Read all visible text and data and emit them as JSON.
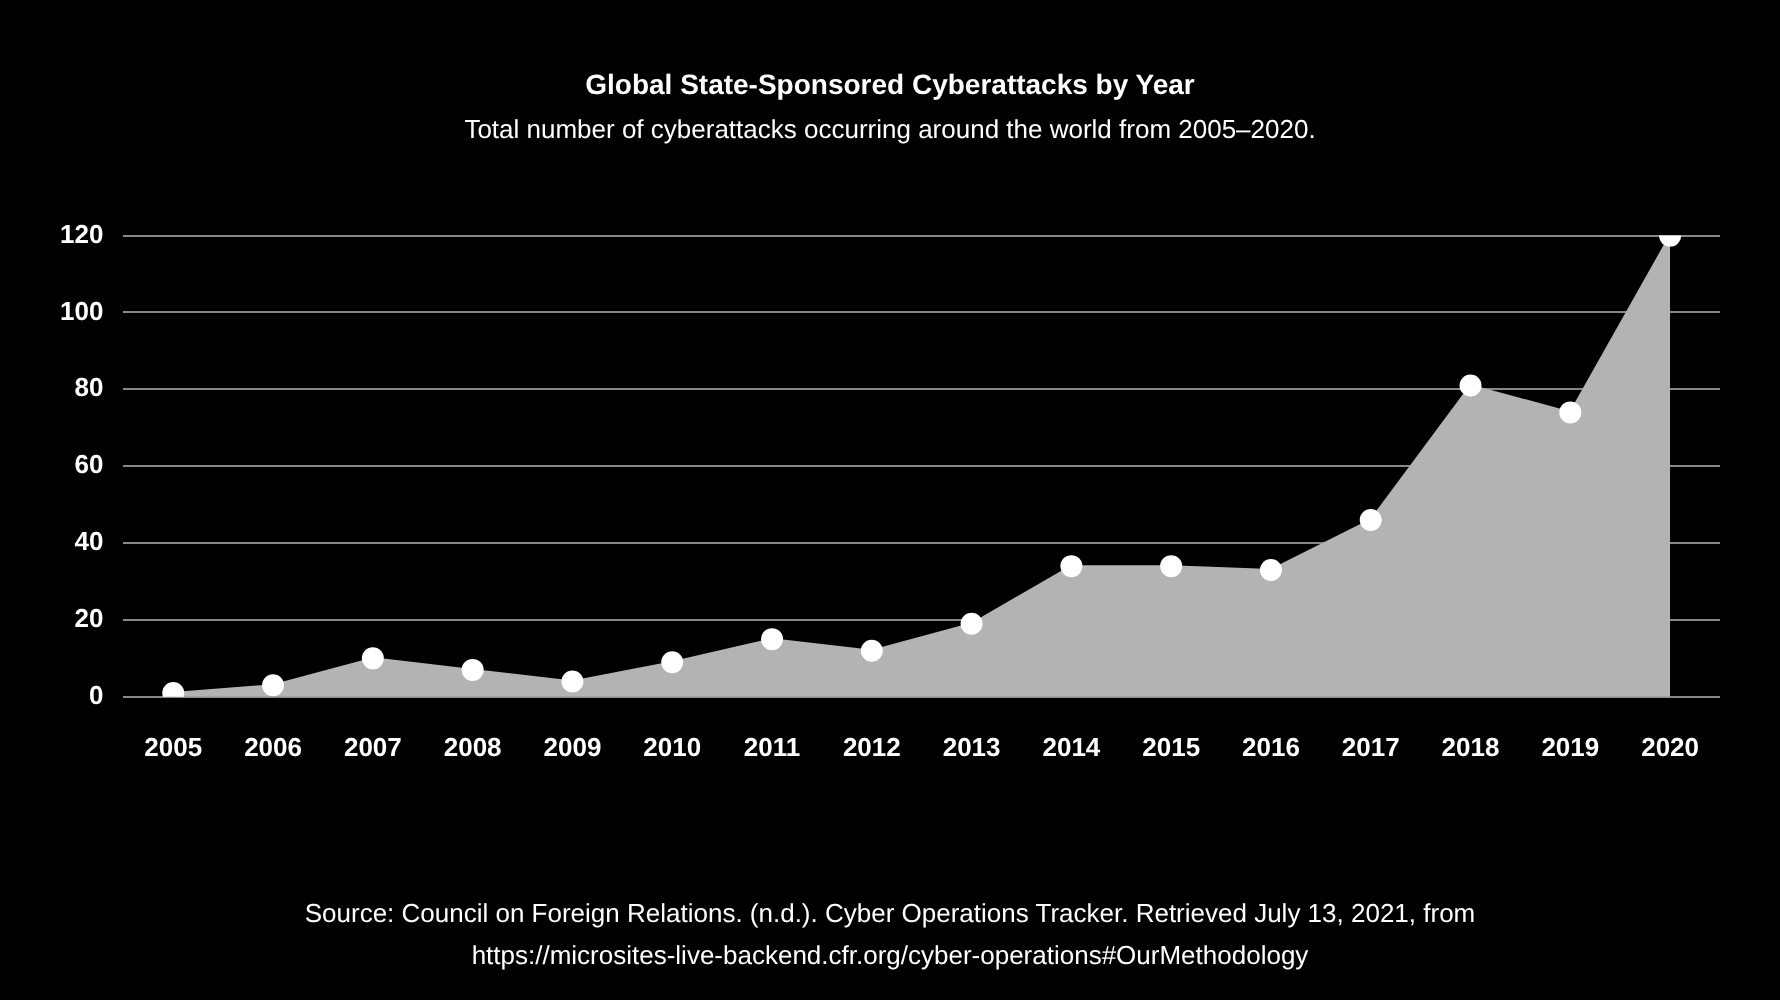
{
  "chart_data": {
    "type": "area",
    "title": "Global State-Sponsored Cyberattacks by Year",
    "subtitle": "Total number of cyberattacks occurring around the world from 2005–2020.",
    "categories": [
      "2005",
      "2006",
      "2007",
      "2008",
      "2009",
      "2010",
      "2011",
      "2012",
      "2013",
      "2014",
      "2015",
      "2016",
      "2017",
      "2018",
      "2019",
      "2020"
    ],
    "series": [
      {
        "color": "#b3b3b3",
        "values": [
          1,
          3,
          10,
          7,
          4,
          9,
          15,
          12,
          19,
          34,
          34,
          33,
          46,
          81,
          74,
          120
        ]
      }
    ],
    "ylim": [
      0,
      120
    ],
    "yticks": [
      0,
      20,
      40,
      60,
      80,
      100,
      120
    ],
    "grid": "y",
    "legend": false,
    "marker": "circle",
    "annotations": [
      "Source: Council on Foreign Relations. (n.d.). Cyber Operations Tracker. Retrieved July 13, 2021, from https://microsites-live-backend.cfr.org/cyber-operations#OurMethodology"
    ]
  }
}
